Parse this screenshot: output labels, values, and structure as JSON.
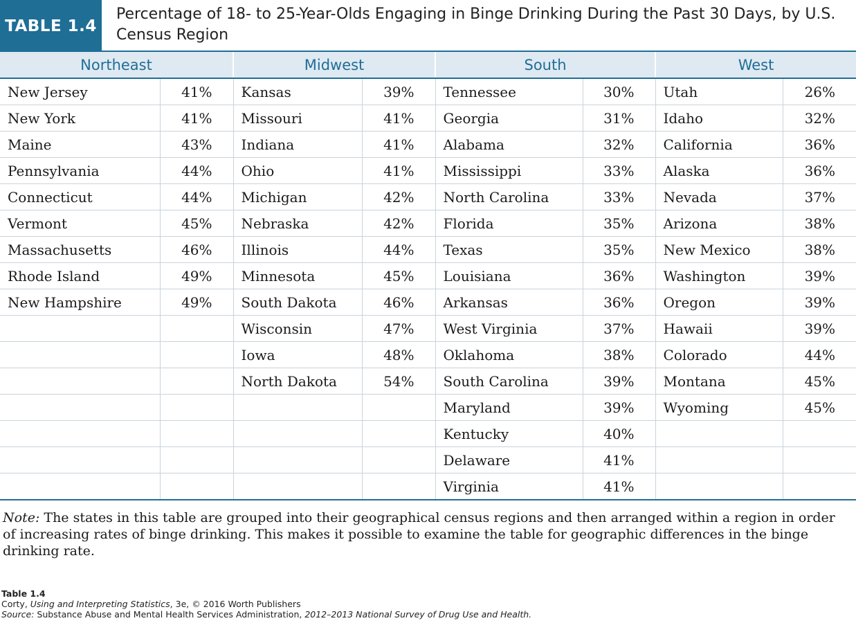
{
  "header": {
    "badge": "TABLE 1.4",
    "title": "Percentage of 18- to 25-Year-Olds Engaging in Binge Drinking During the Past 30 Days, by U.S. Census Region"
  },
  "colors": {
    "accent": "#1f6e96",
    "header_fill": "#dfe9f2"
  },
  "regions": [
    {
      "name": "Northeast",
      "rows": [
        {
          "state": "New Jersey",
          "pct": "41%"
        },
        {
          "state": "New York",
          "pct": "41%"
        },
        {
          "state": "Maine",
          "pct": "43%"
        },
        {
          "state": "Pennsylvania",
          "pct": "44%"
        },
        {
          "state": "Connecticut",
          "pct": "44%"
        },
        {
          "state": "Vermont",
          "pct": "45%"
        },
        {
          "state": "Massachusetts",
          "pct": "46%"
        },
        {
          "state": "Rhode Island",
          "pct": "49%"
        },
        {
          "state": "New Hampshire",
          "pct": "49%"
        }
      ]
    },
    {
      "name": "Midwest",
      "rows": [
        {
          "state": "Kansas",
          "pct": "39%"
        },
        {
          "state": "Missouri",
          "pct": "41%"
        },
        {
          "state": "Indiana",
          "pct": "41%"
        },
        {
          "state": "Ohio",
          "pct": "41%"
        },
        {
          "state": "Michigan",
          "pct": "42%"
        },
        {
          "state": "Nebraska",
          "pct": "42%"
        },
        {
          "state": "Illinois",
          "pct": "44%"
        },
        {
          "state": "Minnesota",
          "pct": "45%"
        },
        {
          "state": "South Dakota",
          "pct": "46%"
        },
        {
          "state": "Wisconsin",
          "pct": "47%"
        },
        {
          "state": "Iowa",
          "pct": "48%"
        },
        {
          "state": "North Dakota",
          "pct": "54%"
        }
      ]
    },
    {
      "name": "South",
      "rows": [
        {
          "state": "Tennessee",
          "pct": "30%"
        },
        {
          "state": "Georgia",
          "pct": "31%"
        },
        {
          "state": "Alabama",
          "pct": "32%"
        },
        {
          "state": "Mississippi",
          "pct": "33%"
        },
        {
          "state": "North Carolina",
          "pct": "33%"
        },
        {
          "state": "Florida",
          "pct": "35%"
        },
        {
          "state": "Texas",
          "pct": "35%"
        },
        {
          "state": "Louisiana",
          "pct": "36%"
        },
        {
          "state": "Arkansas",
          "pct": "36%"
        },
        {
          "state": "West Virginia",
          "pct": "37%"
        },
        {
          "state": "Oklahoma",
          "pct": "38%"
        },
        {
          "state": "South Carolina",
          "pct": "39%"
        },
        {
          "state": "Maryland",
          "pct": "39%"
        },
        {
          "state": "Kentucky",
          "pct": "40%"
        },
        {
          "state": "Delaware",
          "pct": "41%"
        },
        {
          "state": "Virginia",
          "pct": "41%"
        }
      ]
    },
    {
      "name": "West",
      "rows": [
        {
          "state": "Utah",
          "pct": "26%"
        },
        {
          "state": "Idaho",
          "pct": "32%"
        },
        {
          "state": "California",
          "pct": "36%"
        },
        {
          "state": "Alaska",
          "pct": "36%"
        },
        {
          "state": "Nevada",
          "pct": "37%"
        },
        {
          "state": "Arizona",
          "pct": "38%"
        },
        {
          "state": "New Mexico",
          "pct": "38%"
        },
        {
          "state": "Washington",
          "pct": "39%"
        },
        {
          "state": "Oregon",
          "pct": "39%"
        },
        {
          "state": "Hawaii",
          "pct": "39%"
        },
        {
          "state": "Colorado",
          "pct": "44%"
        },
        {
          "state": "Montana",
          "pct": "45%"
        },
        {
          "state": "Wyoming",
          "pct": "45%"
        }
      ]
    }
  ],
  "note": {
    "label": "Note:",
    "text": " The states in this table are grouped into their geographical census regions and then arranged within a region in order of increasing rates of binge drinking. This makes it possible to examine the table for geographic differences in the binge drinking rate."
  },
  "credits": {
    "table_label": "Table 1.4",
    "author": "Corty, ",
    "book": "Using and Interpreting Statistics",
    "edition": ", 3e, © 2016 Worth Publishers",
    "source_label": "Source:",
    "source_text": " Substance Abuse and Mental Health Services Administration, ",
    "source_title": "2012–2013 National Survey of Drug Use and Health."
  }
}
